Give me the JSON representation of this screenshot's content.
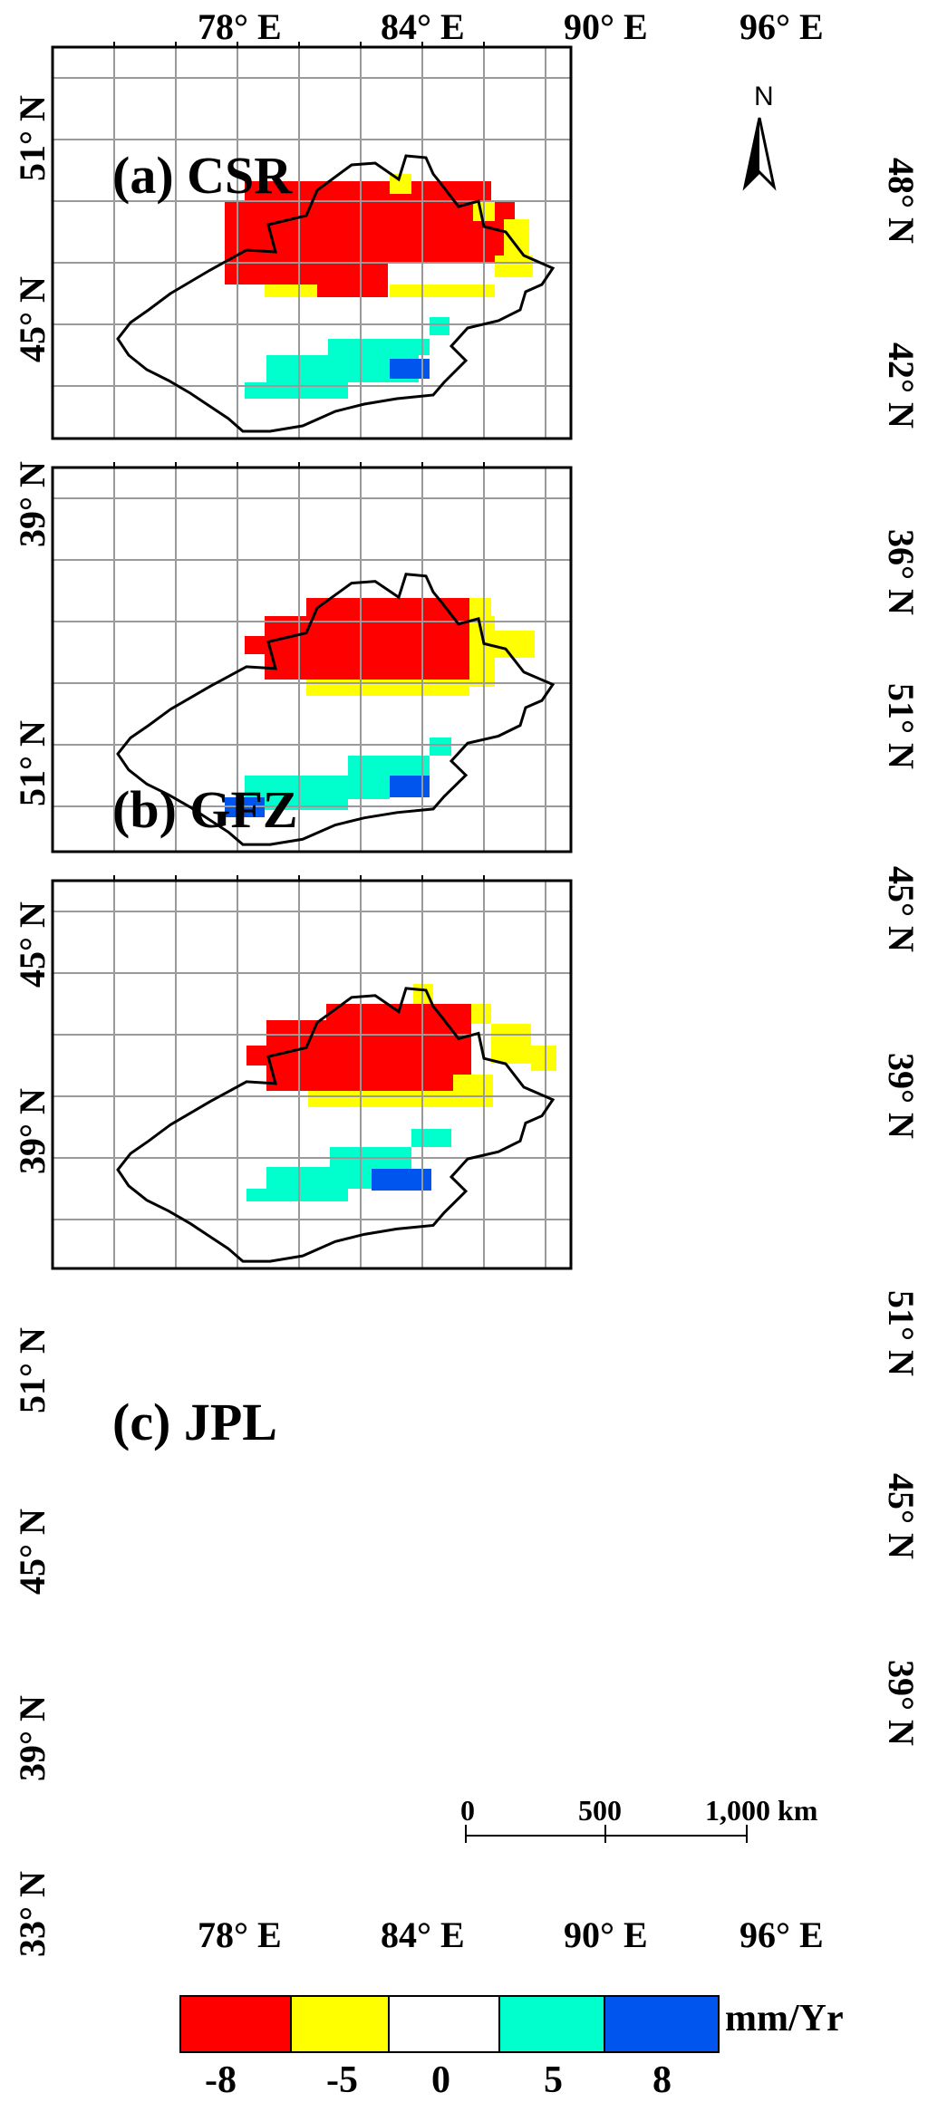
{
  "top_lon_labels": [
    "78° E",
    "84° E",
    "90° E",
    "96° E"
  ],
  "bottom_lon_labels": [
    "78° E",
    "84° E",
    "90° E",
    "96° E"
  ],
  "north_label": "N",
  "panels": [
    {
      "title": "(a) CSR",
      "left_lat_labels": [
        "51° N",
        "45° N",
        "39° N"
      ],
      "right_lat_labels": [
        "48° N",
        "42° N",
        "36° N"
      ],
      "regions": [
        {
          "class": -8,
          "color": "#ff0000"
        },
        {
          "class": -5,
          "color": "#ffff00"
        },
        {
          "class": 5,
          "color": "#00ffcc"
        },
        {
          "class": 8,
          "color": "#0055ee"
        }
      ]
    },
    {
      "title": "(b) GFZ",
      "left_lat_labels": [
        "51° N",
        "45° N",
        "39° N"
      ],
      "right_lat_labels": [
        "51° N",
        "45° N",
        "39° N"
      ],
      "regions": [
        {
          "class": -8,
          "color": "#ff0000"
        },
        {
          "class": -5,
          "color": "#ffff00"
        },
        {
          "class": 5,
          "color": "#00ffcc"
        },
        {
          "class": 8,
          "color": "#0055ee"
        }
      ]
    },
    {
      "title": "(c) JPL",
      "left_lat_labels": [
        "51° N",
        "45° N",
        "39° N",
        "33° N"
      ],
      "right_lat_labels": [
        "51° N",
        "45° N",
        "39° N"
      ],
      "regions": [
        {
          "class": -8,
          "color": "#ff0000"
        },
        {
          "class": -5,
          "color": "#ffff00"
        },
        {
          "class": 5,
          "color": "#00ffcc"
        },
        {
          "class": 8,
          "color": "#0055ee"
        }
      ]
    }
  ],
  "scale_bar": {
    "labels": [
      "0",
      "500",
      "1,000 km"
    ]
  },
  "legend": {
    "unit": "mm/Yr",
    "colors": [
      "#ff0000",
      "#ffff00",
      "#ffffff",
      "#00ffcc",
      "#0055ee"
    ],
    "values": [
      "-8",
      "-5",
      "0",
      "5",
      "8"
    ]
  }
}
